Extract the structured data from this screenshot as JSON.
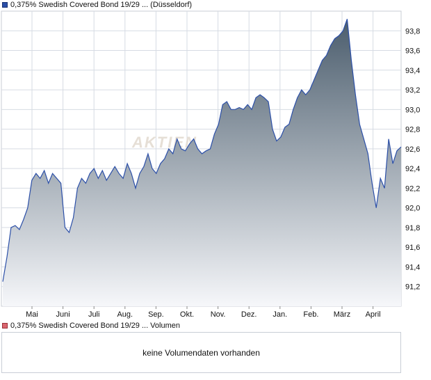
{
  "legend": {
    "price_label": "0,375% Swedish Covered Bond 19/29 ... (Düsseldorf)",
    "volume_label": "0,375% Swedish Covered Bond 19/29 ... Volumen"
  },
  "volume_panel": {
    "message": "keine Volumendaten vorhanden"
  },
  "watermark": "AKTIEN",
  "colors": {
    "line": "#2b4fa8",
    "fill_top": "#4b5d6d",
    "fill_bottom": "#f6f7fa",
    "grid": "#d6dbe3"
  },
  "chart_data": {
    "type": "area",
    "title": "",
    "xlabel": "",
    "ylabel": "",
    "ylim": [
      91.0,
      94.0
    ],
    "y_ticks": [
      "93,8",
      "93,6",
      "93,4",
      "93,2",
      "93,0",
      "92,8",
      "92,6",
      "92,4",
      "92,2",
      "92,0",
      "91,8",
      "91,6",
      "91,4",
      "91,2"
    ],
    "x_ticks": [
      "Mai",
      "Juni",
      "Juli",
      "Aug.",
      "Sep.",
      "Okt.",
      "Nov.",
      "Dez.",
      "Jan.",
      "Feb.",
      "März",
      "April"
    ],
    "grid": true,
    "series": [
      {
        "values": [
          91.25,
          91.5,
          91.8,
          91.82,
          91.78,
          91.88,
          92.0,
          92.28,
          92.35,
          92.3,
          92.38,
          92.25,
          92.35,
          92.3,
          92.25,
          91.8,
          91.75,
          91.9,
          92.2,
          92.3,
          92.25,
          92.35,
          92.4,
          92.3,
          92.38,
          92.28,
          92.35,
          92.42,
          92.35,
          92.3,
          92.45,
          92.35,
          92.2,
          92.35,
          92.42,
          92.55,
          92.4,
          92.35,
          92.45,
          92.5,
          92.6,
          92.55,
          92.7,
          92.6,
          92.58,
          92.65,
          92.7,
          92.6,
          92.55,
          92.58,
          92.6,
          92.75,
          92.85,
          93.05,
          93.08,
          93.0,
          93.0,
          93.02,
          93.0,
          93.05,
          93.0,
          93.12,
          93.15,
          93.12,
          93.08,
          92.8,
          92.68,
          92.72,
          92.82,
          92.85,
          93.0,
          93.12,
          93.2,
          93.15,
          93.2,
          93.3,
          93.4,
          93.5,
          93.55,
          93.65,
          93.72,
          93.75,
          93.8,
          93.92,
          93.5,
          93.15,
          92.85,
          92.7,
          92.55,
          92.25,
          92.0,
          92.3,
          92.2,
          92.7,
          92.45,
          92.58,
          92.62
        ]
      }
    ]
  }
}
